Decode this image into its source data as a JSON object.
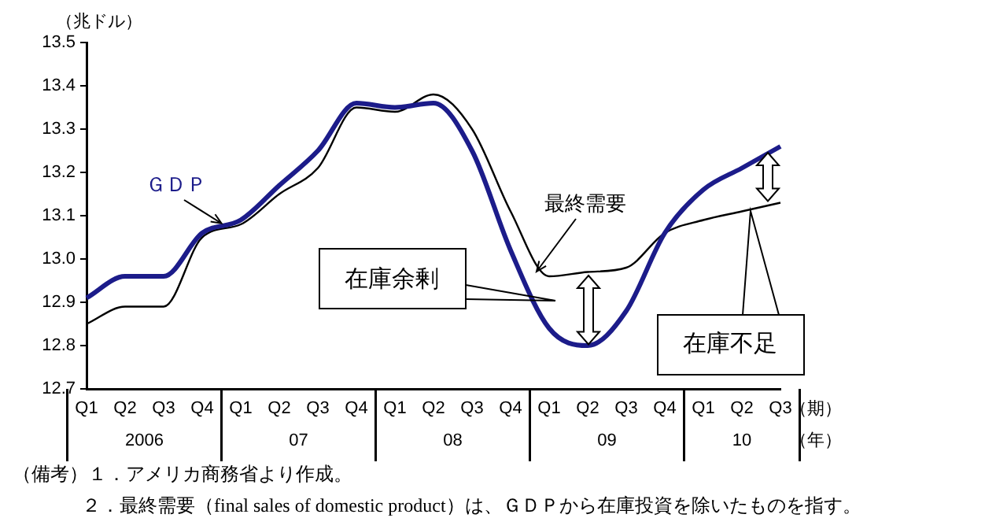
{
  "chart_data": {
    "type": "line",
    "ylabel": "（兆ドル）",
    "xlabel": "（期）",
    "categories": [
      "Q1",
      "Q2",
      "Q3",
      "Q4",
      "Q1",
      "Q2",
      "Q3",
      "Q4",
      "Q1",
      "Q2",
      "Q3",
      "Q4",
      "Q1",
      "Q2",
      "Q3",
      "Q4",
      "Q1",
      "Q2",
      "Q3"
    ],
    "series": [
      {
        "name": "ＧＤＰ",
        "color": "#1c1c8a",
        "values": [
          12.91,
          12.96,
          12.96,
          13.06,
          13.09,
          13.17,
          13.25,
          13.36,
          13.35,
          13.36,
          13.25,
          13.02,
          12.84,
          12.8,
          12.88,
          13.06,
          13.16,
          13.21,
          13.26
        ]
      },
      {
        "name": "最終需要",
        "color": "#000000",
        "values": [
          12.85,
          12.89,
          12.89,
          13.05,
          13.08,
          13.15,
          13.21,
          13.35,
          13.34,
          13.38,
          13.3,
          13.11,
          12.96,
          12.97,
          12.98,
          13.06,
          13.09,
          13.11,
          13.13
        ]
      }
    ],
    "ylim": [
      12.7,
      13.5
    ],
    "yticks": [
      {
        "value": 12.7,
        "label": "12.7"
      },
      {
        "value": 12.8,
        "label": "12.8"
      },
      {
        "value": 12.9,
        "label": "12.9"
      },
      {
        "value": 13.0,
        "label": "13.0"
      },
      {
        "value": 13.1,
        "label": "13.1"
      },
      {
        "value": 13.2,
        "label": "13.2"
      },
      {
        "value": 13.3,
        "label": "13.3"
      },
      {
        "value": 13.4,
        "label": "13.4"
      },
      {
        "value": 13.5,
        "label": "13.5"
      }
    ],
    "grid": false,
    "legend": false,
    "marker": "none",
    "line_style": "solid",
    "annotations": [
      "在庫余剰",
      "在庫不足",
      "2006",
      "07",
      "08",
      "09",
      "10",
      "（年）",
      "（備考）１．アメリカ商務省より作成。",
      "２．最終需要（final sales of domestic product）は、ＧＤＰから在庫投資を除いたものを指す。"
    ]
  }
}
